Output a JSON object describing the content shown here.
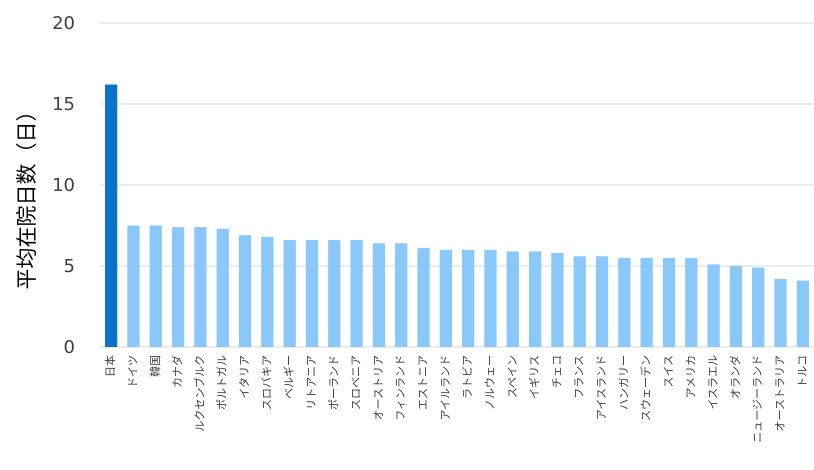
{
  "chart_data": {
    "type": "bar",
    "title": "",
    "xlabel": "",
    "ylabel": "平均在院日数（日）",
    "ylim": [
      0,
      20
    ],
    "yticks": [
      0,
      5,
      10,
      15,
      20
    ],
    "grid": true,
    "highlight_index": 0,
    "colors": {
      "highlight": "#0B72C9",
      "bar": "#8AC8FA",
      "grid": "#D9D9D9",
      "text": "#404040"
    },
    "categories": [
      "日本",
      "ドイツ",
      "韓国",
      "カナダ",
      "ルクセンブルク",
      "ポルトガル",
      "イタリア",
      "スロバキア",
      "ベルギー",
      "リトアニア",
      "ポーランド",
      "スロベニア",
      "オーストリア",
      "フィンランド",
      "エストニア",
      "アイルランド",
      "ラトビア",
      "ノルウェー",
      "スペイン",
      "イギリス",
      "チェコ",
      "フランス",
      "アイスランド",
      "ハンガリー",
      "スウェーデン",
      "スイス",
      "アメリカ",
      "イスラエル",
      "オランダ",
      "ニュージーランド",
      "オーストラリア",
      "トルコ"
    ],
    "values": [
      16.2,
      7.5,
      7.5,
      7.4,
      7.4,
      7.3,
      6.9,
      6.8,
      6.6,
      6.6,
      6.6,
      6.6,
      6.4,
      6.4,
      6.1,
      6.0,
      6.0,
      6.0,
      5.9,
      5.9,
      5.8,
      5.6,
      5.6,
      5.5,
      5.5,
      5.5,
      5.5,
      5.1,
      5.0,
      4.9,
      4.2,
      4.1
    ]
  }
}
